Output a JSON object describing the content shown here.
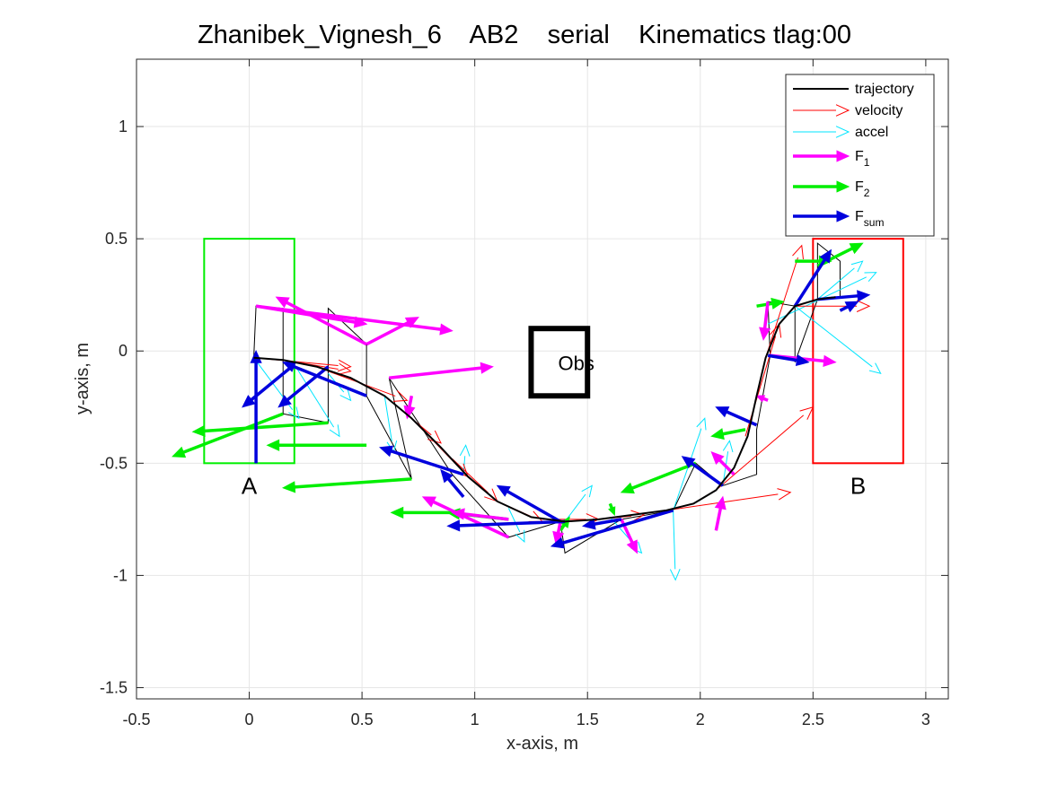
{
  "chart_data": {
    "type": "line",
    "title": "Zhanibek_Vignesh_6    AB2    serial    Kinematics tlag:00",
    "xlabel": "x-axis, m",
    "ylabel": "y-axis, m",
    "xlim": [
      -0.5,
      3.1
    ],
    "ylim": [
      -1.55,
      1.3
    ],
    "xticks": [
      -0.5,
      0,
      0.5,
      1,
      1.5,
      2,
      2.5,
      3
    ],
    "xtick_labels": [
      "-0.5",
      "0",
      "0.5",
      "1",
      "1.5",
      "2",
      "2.5",
      "3"
    ],
    "yticks": [
      -1.5,
      -1,
      -0.5,
      0,
      0.5,
      1
    ],
    "ytick_labels": [
      "-1.5",
      "-1",
      "-0.5",
      "0",
      "0.5",
      "1"
    ],
    "grid": true,
    "legend_position": "top-right",
    "legend": [
      {
        "name": "trajectory",
        "kind": "line",
        "color": "#000000"
      },
      {
        "name": "velocity",
        "kind": "arrow",
        "color": "#ff0000"
      },
      {
        "name": "accel",
        "kind": "arrow",
        "color": "#00e5ff"
      },
      {
        "name": "F",
        "sub": "1",
        "kind": "thick-arrow",
        "color": "#ff00ff"
      },
      {
        "name": "F",
        "sub": "2",
        "kind": "thick-arrow",
        "color": "#00ee00"
      },
      {
        "name": "F",
        "sub": "sum",
        "kind": "thick-arrow",
        "color": "#0000dd"
      }
    ],
    "regions": [
      {
        "label": "A",
        "x": [
          -0.2,
          0.2
        ],
        "y": [
          -0.5,
          0.5
        ],
        "color": "#00ee00",
        "label_pos": [
          0,
          -0.6
        ]
      },
      {
        "label": "B",
        "x": [
          2.5,
          2.9
        ],
        "y": [
          -0.5,
          0.5
        ],
        "color": "#ff0000",
        "label_pos": [
          2.7,
          -0.6
        ]
      },
      {
        "label": "Obs",
        "x": [
          1.25,
          1.5
        ],
        "y": [
          -0.2,
          0.1
        ],
        "color": "#000000",
        "label_pos": [
          1.45,
          -0.05
        ]
      }
    ],
    "trajectory": [
      [
        0.02,
        -0.03
      ],
      [
        0.15,
        -0.04
      ],
      [
        0.3,
        -0.07
      ],
      [
        0.45,
        -0.12
      ],
      [
        0.6,
        -0.2
      ],
      [
        0.72,
        -0.3
      ],
      [
        0.85,
        -0.43
      ],
      [
        0.97,
        -0.56
      ],
      [
        1.1,
        -0.67
      ],
      [
        1.25,
        -0.74
      ],
      [
        1.4,
        -0.76
      ],
      [
        1.55,
        -0.75
      ],
      [
        1.7,
        -0.73
      ],
      [
        1.85,
        -0.71
      ],
      [
        1.97,
        -0.68
      ],
      [
        2.07,
        -0.62
      ],
      [
        2.15,
        -0.52
      ],
      [
        2.21,
        -0.38
      ],
      [
        2.25,
        -0.2
      ],
      [
        2.29,
        -0.03
      ],
      [
        2.35,
        0.12
      ],
      [
        2.42,
        0.2
      ],
      [
        2.52,
        0.23
      ],
      [
        2.6,
        0.24
      ]
    ],
    "sample_path": [
      [
        0.02,
        -0.03
      ],
      [
        0.03,
        0.2
      ],
      [
        0.15,
        0.19
      ],
      [
        0.15,
        -0.28
      ],
      [
        0.35,
        -0.32
      ],
      [
        0.35,
        0.19
      ],
      [
        0.52,
        0.03
      ],
      [
        0.52,
        -0.2
      ],
      [
        0.72,
        -0.57
      ],
      [
        0.62,
        -0.12
      ],
      [
        0.9,
        -0.55
      ],
      [
        1.15,
        -0.83
      ],
      [
        1.38,
        -0.76
      ],
      [
        1.4,
        -0.9
      ],
      [
        1.65,
        -0.75
      ],
      [
        1.88,
        -0.71
      ],
      [
        1.98,
        -0.5
      ],
      [
        2.1,
        -0.6
      ],
      [
        2.25,
        -0.55
      ],
      [
        2.25,
        -0.35
      ],
      [
        2.31,
        -0.02
      ],
      [
        2.3,
        0.22
      ],
      [
        2.42,
        0.2
      ],
      [
        2.42,
        -0.05
      ],
      [
        2.52,
        0.23
      ],
      [
        2.52,
        0.48
      ],
      [
        2.62,
        0.4
      ],
      [
        2.62,
        0.24
      ]
    ],
    "velocity": [
      [
        0.02,
        -0.03,
        0.45,
        -0.07
      ],
      [
        0.15,
        -0.04,
        0.45,
        -0.09
      ],
      [
        0.35,
        -0.09,
        0.7,
        -0.22
      ],
      [
        0.6,
        -0.2,
        0.85,
        -0.41
      ],
      [
        0.72,
        -0.3,
        0.97,
        -0.56
      ],
      [
        0.9,
        -0.48,
        1.1,
        -0.67
      ],
      [
        1.1,
        -0.67,
        1.3,
        -0.76
      ],
      [
        1.3,
        -0.75,
        1.55,
        -0.75
      ],
      [
        1.55,
        -0.75,
        1.75,
        -0.73
      ],
      [
        1.85,
        -0.71,
        2.4,
        -0.63
      ],
      [
        2.07,
        -0.62,
        2.5,
        -0.25
      ],
      [
        2.2,
        -0.38,
        2.35,
        0.12
      ],
      [
        2.29,
        -0.03,
        2.45,
        0.47
      ],
      [
        2.42,
        0.2,
        2.75,
        0.2
      ]
    ],
    "accel": [
      [
        0.02,
        -0.03,
        0.22,
        -0.3
      ],
      [
        0.2,
        -0.06,
        0.4,
        -0.38
      ],
      [
        0.35,
        -0.1,
        0.45,
        -0.22
      ],
      [
        0.6,
        -0.2,
        0.64,
        -0.45
      ],
      [
        0.95,
        -0.55,
        0.96,
        -0.42
      ],
      [
        1.15,
        -0.7,
        1.22,
        -0.85
      ],
      [
        1.4,
        -0.76,
        1.52,
        -0.6
      ],
      [
        1.6,
        -0.74,
        1.74,
        -0.9
      ],
      [
        1.88,
        -0.71,
        1.89,
        -1.02
      ],
      [
        1.88,
        -0.71,
        2.02,
        -0.3
      ],
      [
        2.1,
        -0.6,
        2.13,
        -0.4
      ],
      [
        2.3,
        0.12,
        2.78,
        0.35
      ],
      [
        2.42,
        0.2,
        2.8,
        -0.1
      ],
      [
        2.52,
        0.23,
        2.72,
        0.4
      ]
    ],
    "F1": [
      [
        0.03,
        0.2,
        0.52,
        0.12
      ],
      [
        0.03,
        0.2,
        0.9,
        0.09
      ],
      [
        0.52,
        0.03,
        0.75,
        0.15
      ],
      [
        0.52,
        0.03,
        0.12,
        0.24
      ],
      [
        0.62,
        -0.12,
        1.08,
        -0.07
      ],
      [
        0.72,
        -0.2,
        0.7,
        -0.3
      ],
      [
        1.15,
        -0.83,
        0.77,
        -0.65
      ],
      [
        1.15,
        -0.75,
        0.9,
        -0.72
      ],
      [
        1.38,
        -0.76,
        1.36,
        -0.86
      ],
      [
        1.65,
        -0.75,
        1.72,
        -0.9
      ],
      [
        2.07,
        -0.8,
        2.1,
        -0.65
      ],
      [
        2.15,
        -0.55,
        2.05,
        -0.45
      ],
      [
        2.31,
        -0.02,
        2.6,
        -0.05
      ],
      [
        2.3,
        0.22,
        2.28,
        0.05
      ],
      [
        2.3,
        -0.22,
        2.25,
        -0.2
      ]
    ],
    "F2": [
      [
        0.15,
        -0.28,
        -0.34,
        -0.47
      ],
      [
        0.35,
        -0.32,
        -0.25,
        -0.36
      ],
      [
        0.52,
        -0.42,
        0.08,
        -0.42
      ],
      [
        0.72,
        -0.57,
        0.15,
        -0.61
      ],
      [
        0.95,
        -0.72,
        0.63,
        -0.72
      ],
      [
        1.15,
        -0.75,
        0.88,
        -0.72
      ],
      [
        1.38,
        -0.8,
        1.42,
        -0.74
      ],
      [
        1.6,
        -0.68,
        1.62,
        -0.73
      ],
      [
        1.98,
        -0.5,
        1.65,
        -0.63
      ],
      [
        2.2,
        -0.35,
        2.05,
        -0.38
      ],
      [
        2.25,
        0.2,
        2.37,
        0.22
      ],
      [
        2.42,
        0.4,
        2.58,
        0.4
      ],
      [
        2.52,
        0.38,
        2.72,
        0.48
      ]
    ],
    "Fsum": [
      [
        0.03,
        -0.5,
        0.03,
        0.0
      ],
      [
        0.35,
        -0.07,
        0.13,
        -0.25
      ],
      [
        0.2,
        -0.06,
        -0.03,
        -0.25
      ],
      [
        0.52,
        -0.2,
        0.15,
        -0.05
      ],
      [
        0.95,
        -0.55,
        0.58,
        -0.43
      ],
      [
        0.95,
        -0.65,
        0.85,
        -0.53
      ],
      [
        1.38,
        -0.76,
        1.1,
        -0.6
      ],
      [
        1.4,
        -0.76,
        0.88,
        -0.78
      ],
      [
        1.65,
        -0.75,
        1.48,
        -0.78
      ],
      [
        1.88,
        -0.71,
        1.34,
        -0.87
      ],
      [
        2.1,
        -0.6,
        1.92,
        -0.47
      ],
      [
        2.25,
        -0.33,
        2.07,
        -0.25
      ],
      [
        2.42,
        0.2,
        2.58,
        0.45
      ],
      [
        2.52,
        0.23,
        2.75,
        0.25
      ],
      [
        2.3,
        -0.02,
        2.48,
        -0.05
      ],
      [
        2.62,
        0.18,
        2.7,
        0.22
      ]
    ]
  }
}
